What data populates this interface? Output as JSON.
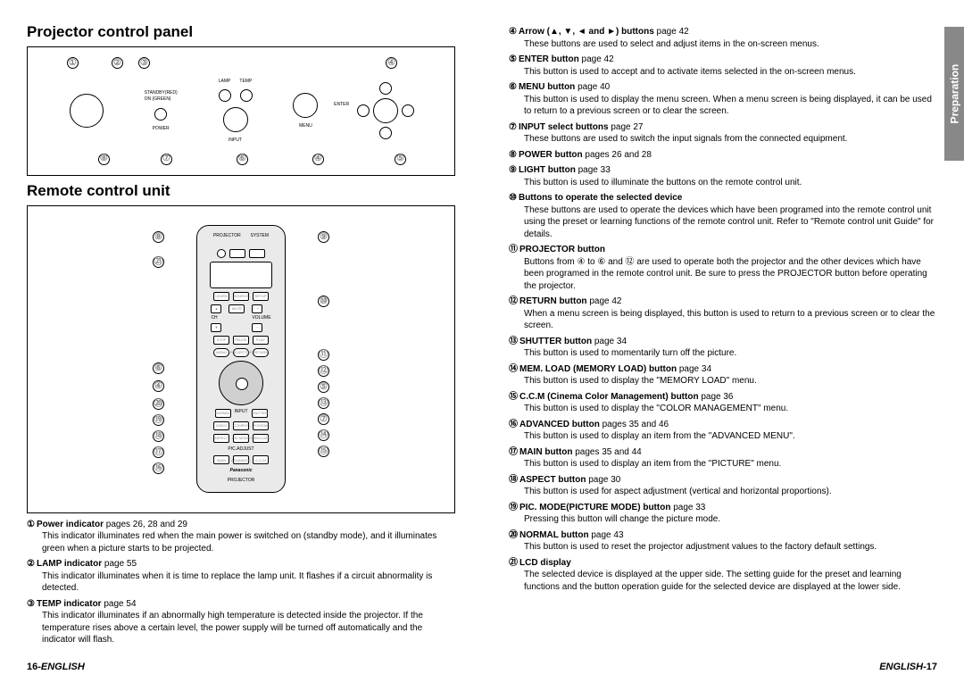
{
  "left": {
    "title1": "Projector control panel",
    "title2": "Remote control unit",
    "items": [
      {
        "n": "①",
        "bold": "Power indicator",
        "pages": " pages 26, 28 and 29",
        "desc": "This indicator illuminates red when the main power is switched on (standby mode), and it illuminates green when a picture starts to be projected."
      },
      {
        "n": "②",
        "bold": "LAMP indicator",
        "pages": " page 55",
        "desc": "This indicator illuminates when it is time to replace the lamp unit. It flashes if a circuit abnormality is detected."
      },
      {
        "n": "③",
        "bold": "TEMP indicator",
        "pages": " page 54",
        "desc": "This indicator illuminates if an abnormally high temperature is detected inside the projector. If the temperature rises above a certain level, the power supply will be turned off automatically and the indicator will flash."
      }
    ],
    "footer_page": "16-",
    "footer_lang": "ENGLISH"
  },
  "right": {
    "side_tab": "Preparation",
    "items": [
      {
        "n": "④",
        "bold": "Arrow (▲, ▼, ◄ and ►) buttons",
        "pages": " page 42",
        "desc": "These buttons are used to select and adjust items in the on-screen menus."
      },
      {
        "n": "⑤",
        "bold": "ENTER button",
        "pages": " page 42",
        "desc": "This button is used to accept and to activate items selected in the on-screen menus."
      },
      {
        "n": "⑥",
        "bold": "MENU button",
        "pages": " page 40",
        "desc": "This button is used to display the menu screen. When a menu screen is being displayed, it can be used to return to a previous screen or to clear the screen."
      },
      {
        "n": "⑦",
        "bold": "INPUT select buttons",
        "pages": " page 27",
        "desc": "These buttons are used to switch the input signals from the connected equipment."
      },
      {
        "n": "⑧",
        "bold": "POWER button",
        "pages": " pages 26 and 28",
        "desc": ""
      },
      {
        "n": "⑨",
        "bold": "LIGHT button",
        "pages": " page 33",
        "desc": "This button is used to illuminate the buttons on the remote control unit."
      },
      {
        "n": "⑩",
        "bold": "Buttons to operate the selected device",
        "pages": "",
        "desc": "These buttons are used to operate the devices which have been programed into the remote control unit using the preset or learning functions of the remote control unit. Refer to \"Remote control unit Guide\" for details."
      },
      {
        "n": "⑪",
        "bold": "PROJECTOR button",
        "pages": "",
        "desc": "Buttons from ④ to ⑥ and ⑫ are used to operate both the projector and the other devices which have been programed in the remote control unit. Be sure to press the PROJECTOR button before operating the projector."
      },
      {
        "n": "⑫",
        "bold": "RETURN button",
        "pages": " page 42",
        "desc": "When a menu screen is being displayed, this button is used to return to a previous screen or to clear the screen."
      },
      {
        "n": "⑬",
        "bold": "SHUTTER button",
        "pages": " page 34",
        "desc": "This button is used to momentarily turn off the picture."
      },
      {
        "n": "⑭",
        "bold": "MEM. LOAD (MEMORY LOAD) button",
        "pages": " page 34",
        "desc": "This button is used to display the \"MEMORY LOAD\" menu."
      },
      {
        "n": "⑮",
        "bold": "C.C.M (Cinema Color Management) button",
        "pages": " page 36",
        "desc": "This button is used to display the \"COLOR MANAGEMENT\" menu."
      },
      {
        "n": "⑯",
        "bold": "ADVANCED button",
        "pages": " pages 35 and 46",
        "desc": "This button is used to display an item from the \"ADVANCED MENU\"."
      },
      {
        "n": "⑰",
        "bold": "MAIN button",
        "pages": " pages 35 and 44",
        "desc": "This button is used to display an item from the \"PICTURE\" menu."
      },
      {
        "n": "⑱",
        "bold": "ASPECT button",
        "pages": " page 30",
        "desc": "This button is used for aspect adjustment (vertical and horizontal proportions)."
      },
      {
        "n": "⑲",
        "bold": "PIC. MODE(PICTURE MODE) button",
        "pages": " page 33",
        "desc": "Pressing this button will change the picture mode."
      },
      {
        "n": "⑳",
        "bold": "NORMAL button",
        "pages": " page 43",
        "desc": "This button is used to reset the projector adjustment values to the factory default settings."
      },
      {
        "n": "㉑",
        "bold": "LCD display",
        "pages": "",
        "desc": "The selected device is displayed at the upper side. The setting guide for the preset and learning functions and the button operation guide for the selected device are displayed at the lower side."
      }
    ],
    "footer_lang": "ENGLISH",
    "footer_page": "-17"
  },
  "diagrams": {
    "projector_callouts_top": [
      "①",
      "②",
      "③",
      "④"
    ],
    "projector_callouts_bottom": [
      "⑧",
      "⑦",
      "⑥",
      "④",
      "⑤"
    ],
    "remote_left": [
      "⑧",
      "㉑",
      "⑥",
      "④",
      "⑳",
      "⑲",
      "⑱",
      "⑰",
      "⑯"
    ],
    "remote_right": [
      "⑨",
      "⑩",
      "⑪",
      "⑫",
      "⑤",
      "⑬",
      "⑦",
      "⑭",
      "⑮"
    ],
    "brand": "Panasonic",
    "model": "PROJECTOR"
  }
}
